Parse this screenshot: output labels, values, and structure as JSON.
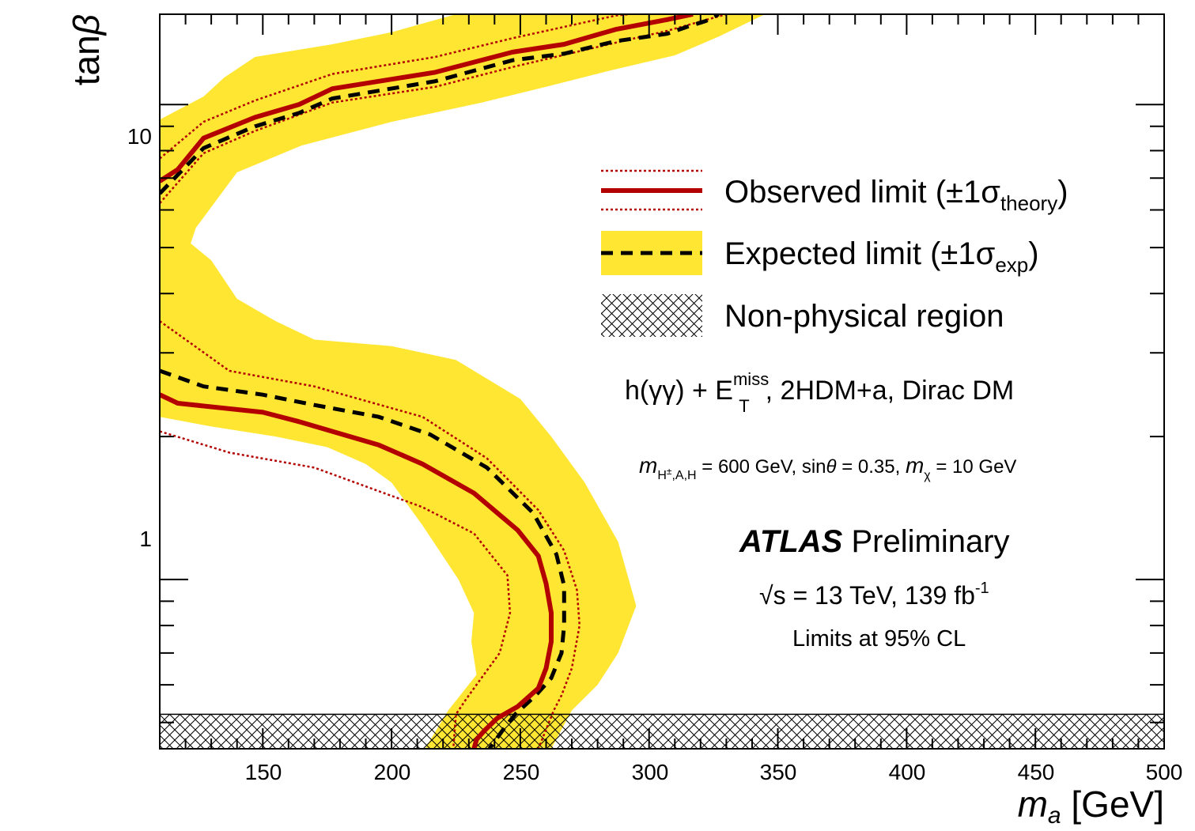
{
  "chart_data": {
    "type": "line",
    "xlabel_main": "m",
    "xlabel_sub": "a",
    "xlabel_unit": "[GeV]",
    "ylabel_main": "tan",
    "ylabel_greek": "β",
    "xlim": [
      110,
      500
    ],
    "ylim": [
      0.44,
      15.5
    ],
    "yscale": "log",
    "x_ticks": [
      "150",
      "200",
      "250",
      "300",
      "350",
      "400",
      "450",
      "500"
    ],
    "y_ticks": [
      "1",
      "10"
    ],
    "legend_position": "top-right",
    "legend": {
      "observed": {
        "text": "Observed limit (±1",
        "sigma": "σ",
        "sub": "theory",
        "close": ")"
      },
      "expected": {
        "text": "Expected limit (±1",
        "sigma": "σ",
        "sub": "exp",
        "close": ")"
      },
      "nonphysical": "Non-physical region"
    },
    "colors": {
      "observed": "#b30000",
      "expected": "#000000",
      "band": "#ffe633",
      "hatch": "#000000"
    },
    "non_physical_region": {
      "y_below": 0.52
    },
    "annotations": {
      "process_a": "h(γγ) + E",
      "process_sup": "miss",
      "process_sub": "T",
      "process_b": ", 2HDM+a, Dirac DM",
      "params_m1": "m",
      "params_sub1": "H",
      "params_sup1": "±",
      "params_sub1b": ",A,H",
      "params_mid": " = 600 GeV, sin",
      "params_theta": "θ",
      "params_mid2": " = 0.35, ",
      "params_m2": "m",
      "params_sub2": "χ",
      "params_end": " = 10 GeV",
      "atlas": "ATLAS",
      "preliminary": " Preliminary",
      "sqrt": "√",
      "energy": "s = 13 TeV, 139 fb",
      "energy_sup": "-1",
      "cl": "Limits at 95% CL"
    },
    "series": {
      "upper": {
        "observed": [
          [
            110,
            6.9
          ],
          [
            117,
            7.3
          ],
          [
            127,
            8.5
          ],
          [
            147,
            9.4
          ],
          [
            164,
            10.0
          ],
          [
            177,
            10.8
          ],
          [
            217,
            11.7
          ],
          [
            247,
            12.9
          ],
          [
            267,
            13.4
          ],
          [
            287,
            14.4
          ],
          [
            307,
            15.1
          ],
          [
            317,
            15.5
          ]
        ],
        "observed_plus": [
          [
            110,
            7.7
          ],
          [
            127,
            9.2
          ],
          [
            147,
            10.2
          ],
          [
            177,
            11.6
          ],
          [
            217,
            12.6
          ],
          [
            247,
            13.8
          ],
          [
            287,
            15.4
          ],
          [
            292,
            15.5
          ]
        ],
        "observed_minus": [
          [
            110,
            6.2
          ],
          [
            127,
            7.9
          ],
          [
            147,
            8.8
          ],
          [
            177,
            10.1
          ],
          [
            217,
            10.9
          ],
          [
            247,
            12.0
          ],
          [
            287,
            13.5
          ],
          [
            307,
            14.3
          ],
          [
            330,
            15.5
          ]
        ],
        "expected": [
          [
            110,
            6.5
          ],
          [
            127,
            8.1
          ],
          [
            147,
            9.0
          ],
          [
            164,
            9.6
          ],
          [
            177,
            10.3
          ],
          [
            217,
            11.2
          ],
          [
            247,
            12.4
          ],
          [
            267,
            12.8
          ],
          [
            287,
            13.6
          ],
          [
            307,
            14.1
          ],
          [
            315,
            14.6
          ],
          [
            322,
            15.0
          ],
          [
            327,
            15.5
          ]
        ],
        "band": [
          [
            110,
            9.3
          ],
          [
            127,
            10.4
          ],
          [
            135,
            11.4
          ],
          [
            147,
            12.6
          ],
          [
            177,
            13.4
          ],
          [
            200,
            14.2
          ],
          [
            225,
            15.5
          ],
          [
            345,
            15.5
          ],
          [
            327,
            13.9
          ],
          [
            310,
            12.7
          ],
          [
            285,
            11.8
          ],
          [
            260,
            10.9
          ],
          [
            235,
            10.1
          ],
          [
            200,
            9.2
          ],
          [
            165,
            8.2
          ],
          [
            140,
            7.2
          ],
          [
            124,
            5.5
          ],
          [
            122,
            5.1
          ],
          [
            130,
            4.7
          ],
          [
            140,
            3.9
          ],
          [
            155,
            3.5
          ],
          [
            170,
            3.2
          ],
          [
            200,
            3.1
          ],
          [
            225,
            2.9
          ],
          [
            250,
            2.4
          ],
          [
            262,
            2.0
          ],
          [
            275,
            1.6
          ],
          [
            288,
            1.2
          ],
          [
            295,
            0.88
          ],
          [
            288,
            0.7
          ],
          [
            280,
            0.6
          ],
          [
            270,
            0.53
          ],
          [
            262,
            0.44
          ],
          [
            213,
            0.44
          ],
          [
            222,
            0.53
          ],
          [
            233,
            0.63
          ],
          [
            231,
            0.74
          ],
          [
            232,
            0.85
          ],
          [
            226,
            1.0
          ],
          [
            212,
            1.3
          ],
          [
            200,
            1.6
          ],
          [
            190,
            1.75
          ],
          [
            175,
            1.9
          ],
          [
            155,
            2.0
          ],
          [
            130,
            2.1
          ],
          [
            110,
            2.2
          ]
        ]
      },
      "lower": {
        "observed": [
          [
            110,
            2.45
          ],
          [
            117,
            2.35
          ],
          [
            150,
            2.25
          ],
          [
            164,
            2.15
          ],
          [
            177,
            2.05
          ],
          [
            195,
            1.92
          ],
          [
            212,
            1.75
          ],
          [
            232,
            1.52
          ],
          [
            249,
            1.27
          ],
          [
            257,
            1.12
          ],
          [
            260,
            0.98
          ],
          [
            262,
            0.85
          ],
          [
            262,
            0.74
          ],
          [
            260,
            0.65
          ],
          [
            257,
            0.59
          ],
          [
            249,
            0.54
          ],
          [
            241,
            0.51
          ],
          [
            236,
            0.48
          ],
          [
            233,
            0.46
          ],
          [
            232,
            0.44
          ]
        ],
        "observed_plus": [
          [
            110,
            3.5
          ],
          [
            137,
            2.75
          ],
          [
            170,
            2.55
          ],
          [
            212,
            2.2
          ],
          [
            237,
            1.8
          ],
          [
            257,
            1.4
          ],
          [
            267,
            1.15
          ],
          [
            272,
            0.95
          ],
          [
            273,
            0.8
          ],
          [
            270,
            0.65
          ],
          [
            266,
            0.57
          ],
          [
            263,
            0.53
          ],
          [
            257,
            0.44
          ]
        ],
        "observed_minus": [
          [
            110,
            2.05
          ],
          [
            137,
            1.85
          ],
          [
            170,
            1.72
          ],
          [
            212,
            1.42
          ],
          [
            232,
            1.25
          ],
          [
            245,
            1.02
          ],
          [
            246,
            0.85
          ],
          [
            242,
            0.7
          ],
          [
            233,
            0.6
          ],
          [
            229,
            0.56
          ],
          [
            225,
            0.52
          ],
          [
            224,
            0.44
          ]
        ],
        "expected": [
          [
            110,
            2.75
          ],
          [
            127,
            2.55
          ],
          [
            150,
            2.45
          ],
          [
            170,
            2.33
          ],
          [
            195,
            2.2
          ],
          [
            215,
            2.02
          ],
          [
            237,
            1.72
          ],
          [
            255,
            1.38
          ],
          [
            264,
            1.13
          ],
          [
            267,
            0.97
          ],
          [
            267,
            0.8
          ],
          [
            266,
            0.7
          ],
          [
            262,
            0.62
          ],
          [
            256,
            0.57
          ],
          [
            248,
            0.52
          ],
          [
            243,
            0.48
          ],
          [
            238,
            0.44
          ]
        ]
      }
    }
  }
}
